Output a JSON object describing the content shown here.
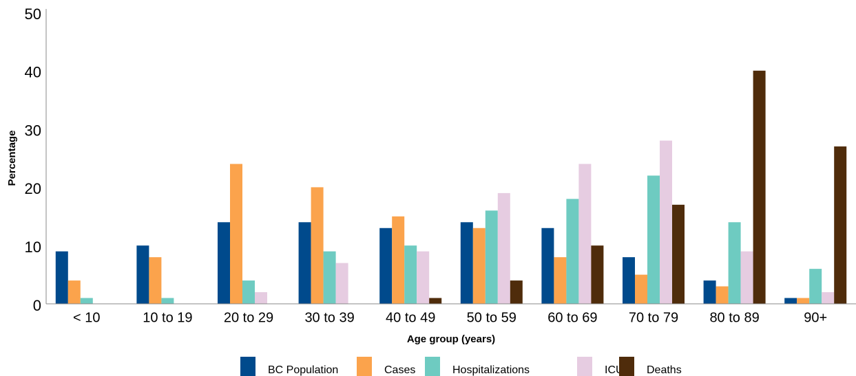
{
  "chart_data": {
    "type": "bar",
    "x_label": "Age group (years)",
    "y_label": "Percentage",
    "categories": [
      "< 10",
      "10 to 19",
      "20 to 29",
      "30 to 39",
      "40 to 49",
      "50 to 59",
      "60 to 69",
      "70 to 79",
      "80 to 89",
      "90+"
    ],
    "series": [
      {
        "name": "BC Population",
        "color": "#004a8c",
        "values": [
          9,
          10,
          14,
          14,
          13,
          14,
          13,
          8,
          4,
          1
        ]
      },
      {
        "name": "Cases",
        "color": "#fba34c",
        "values": [
          4,
          8,
          24,
          20,
          15,
          13,
          8,
          5,
          3,
          1
        ]
      },
      {
        "name": "Hospitalizations",
        "color": "#6ecbc1",
        "values": [
          1,
          1,
          4,
          9,
          10,
          16,
          18,
          22,
          14,
          6
        ]
      },
      {
        "name": "ICU",
        "color": "#e6cce1",
        "values": [
          0,
          0,
          2,
          7,
          9,
          19,
          24,
          28,
          9,
          2
        ]
      },
      {
        "name": "Deaths",
        "color": "#4f2c0b",
        "values": [
          0,
          0,
          0,
          0,
          1,
          4,
          10,
          17,
          40,
          27
        ]
      }
    ],
    "ylim": [
      0,
      50
    ],
    "yticks": [
      0,
      10,
      20,
      30,
      40,
      50
    ],
    "grid": false,
    "legend": "bottom"
  }
}
